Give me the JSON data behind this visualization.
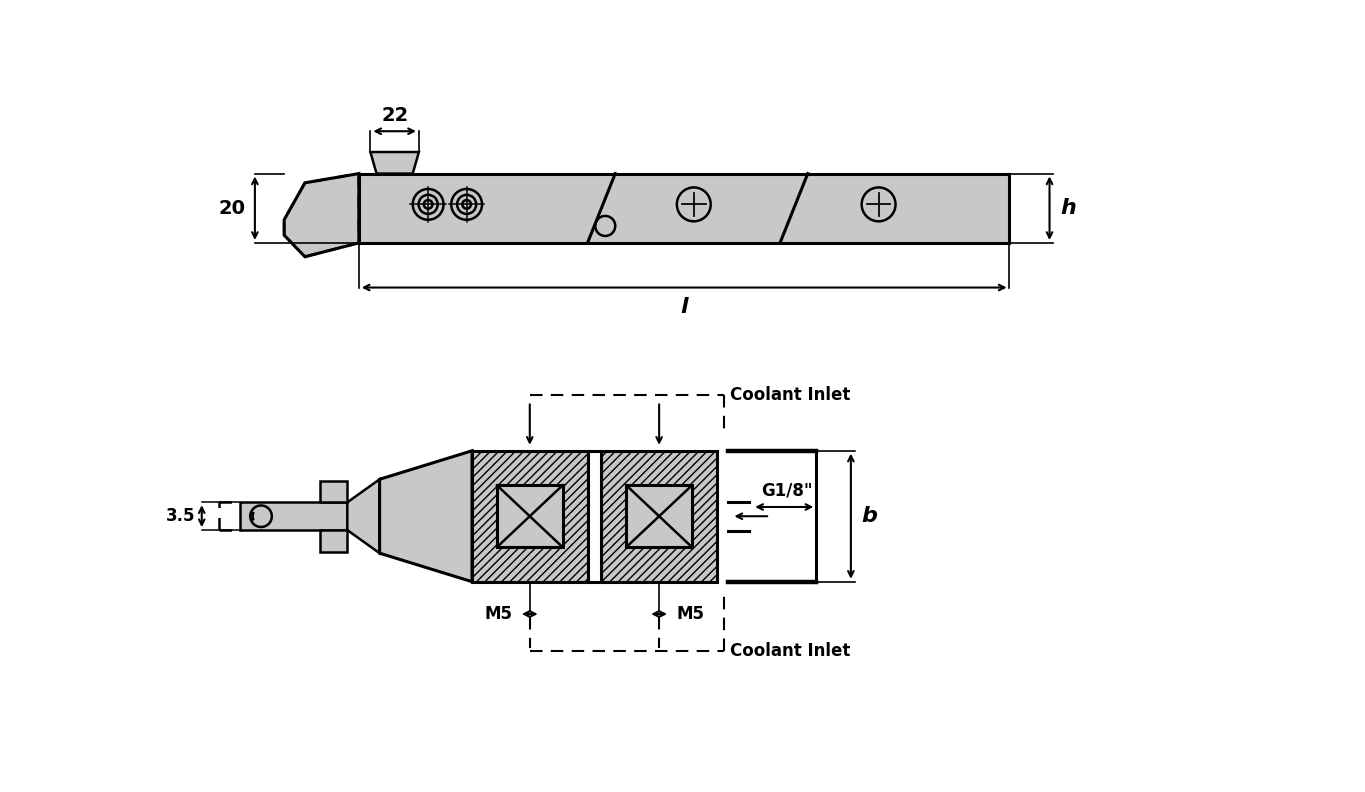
{
  "bg_color": "#ffffff",
  "line_color": "#000000",
  "fill_color": "#c8c8c8",
  "dim_22_label": "22",
  "dim_20_label": "20",
  "dim_l_label": "l",
  "dim_h_label": "h",
  "dim_b_label": "b",
  "dim_35_label": "3.5",
  "dim_g18_label": "G1/8\"",
  "dim_m5_label": "M5",
  "coolant_label": "Coolant Inlet",
  "label_fontsize": 14,
  "small_fontsize": 12
}
